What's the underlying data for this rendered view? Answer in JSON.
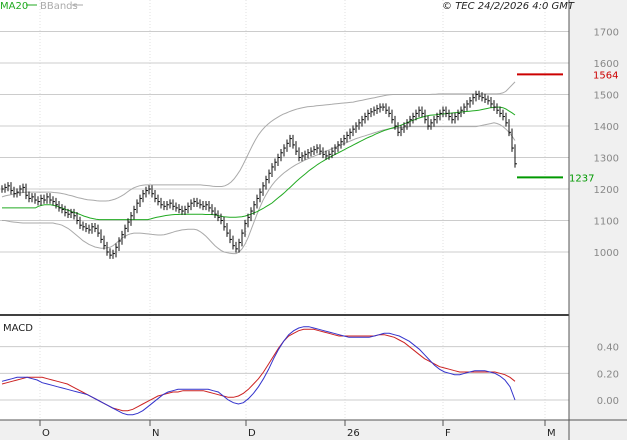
{
  "header": {
    "legend_ma": "MA20",
    "legend_bb": "BBands",
    "copyright": "© TEC 24/2/2026 4:0 GMT"
  },
  "colors": {
    "ma": "#22aa22",
    "bands": "#aaaaaa",
    "price": "#111111",
    "macd": "#3333cc",
    "signal": "#cc2222",
    "resistance": "#cc0000",
    "support": "#009900",
    "grid": "#cccccc",
    "panel_bg": "#f0f0f0"
  },
  "chart_data": [
    {
      "type": "line",
      "name": "price-panel",
      "x_labels": [
        "O",
        "N",
        "D",
        "26",
        "F",
        "M"
      ],
      "ylim": [
        800,
        1800
      ],
      "yticks": [
        1000,
        1100,
        1200,
        1300,
        1400,
        1500,
        1600,
        1700
      ],
      "grid": true,
      "levels": {
        "resistance": {
          "value": 1564,
          "label": "1564"
        },
        "support": {
          "value": 1237,
          "label": "1237"
        }
      },
      "series": [
        {
          "name": "MA20",
          "values": [
            1140,
            1140,
            1140,
            1140,
            1140,
            1140,
            1140,
            1140,
            1140,
            1140,
            1140,
            1140,
            1145,
            1148,
            1150,
            1150,
            1150,
            1148,
            1146,
            1142,
            1139,
            1135,
            1132,
            1128,
            1125,
            1122,
            1118,
            1114,
            1111,
            1108,
            1106,
            1104,
            1103,
            1103,
            1103,
            1103,
            1103,
            1103,
            1103,
            1103,
            1103,
            1103,
            1103,
            1103,
            1103,
            1103,
            1103,
            1103,
            1103,
            1105,
            1108,
            1110,
            1112,
            1114,
            1116,
            1117,
            1118,
            1119,
            1119,
            1120,
            1120,
            1120,
            1120,
            1120,
            1120,
            1120,
            1120,
            1119,
            1119,
            1119,
            1118,
            1116,
            1114,
            1112,
            1111,
            1110,
            1110,
            1110,
            1111,
            1112,
            1114,
            1117,
            1120,
            1124,
            1128,
            1133,
            1138,
            1144,
            1150,
            1156,
            1164,
            1172,
            1180,
            1188,
            1197,
            1206,
            1215,
            1224,
            1233,
            1241,
            1249,
            1257,
            1264,
            1271,
            1278,
            1284,
            1290,
            1296,
            1301,
            1306,
            1311,
            1316,
            1321,
            1326,
            1331,
            1336,
            1341,
            1346,
            1351,
            1356,
            1361,
            1365,
            1369,
            1374,
            1378,
            1382,
            1386,
            1389,
            1392,
            1395,
            1398,
            1401,
            1405,
            1409,
            1413,
            1417,
            1420,
            1424,
            1427,
            1430,
            1432,
            1434,
            1435,
            1436,
            1437,
            1438,
            1439,
            1440,
            1441,
            1442,
            1443,
            1444,
            1445,
            1446,
            1447,
            1448,
            1449,
            1450,
            1452,
            1454,
            1456,
            1458,
            1459,
            1460,
            1460,
            1458,
            1454,
            1448,
            1442,
            1435
          ]
        },
        {
          "name": "BBands upper",
          "values": [
            1175,
            1178,
            1180,
            1182,
            1185,
            1187,
            1188,
            1189,
            1190,
            1190,
            1190,
            1190,
            1190,
            1190,
            1190,
            1190,
            1190,
            1189,
            1188,
            1187,
            1185,
            1183,
            1180,
            1178,
            1175,
            1172,
            1170,
            1168,
            1166,
            1165,
            1164,
            1163,
            1162,
            1162,
            1162,
            1163,
            1165,
            1168,
            1172,
            1177,
            1183,
            1190,
            1197,
            1203,
            1207,
            1210,
            1212,
            1213,
            1213,
            1213,
            1213,
            1213,
            1213,
            1213,
            1213,
            1213,
            1213,
            1213,
            1213,
            1213,
            1213,
            1213,
            1213,
            1213,
            1213,
            1213,
            1212,
            1211,
            1210,
            1209,
            1208,
            1208,
            1208,
            1210,
            1215,
            1222,
            1232,
            1245,
            1260,
            1278,
            1298,
            1318,
            1338,
            1356,
            1372,
            1385,
            1396,
            1405,
            1413,
            1420,
            1426,
            1432,
            1437,
            1441,
            1445,
            1449,
            1452,
            1455,
            1457,
            1459,
            1461,
            1462,
            1463,
            1464,
            1465,
            1466,
            1467,
            1468,
            1469,
            1470,
            1471,
            1472,
            1473,
            1474,
            1475,
            1476,
            1478,
            1480,
            1482,
            1484,
            1486,
            1488,
            1490,
            1492,
            1494,
            1496,
            1498,
            1499,
            1500,
            1500,
            1500,
            1500,
            1500,
            1500,
            1500,
            1500,
            1500,
            1500,
            1500,
            1500,
            1500,
            1501,
            1501,
            1502,
            1502,
            1502,
            1502,
            1502,
            1502,
            1502,
            1502,
            1502,
            1502,
            1502,
            1502,
            1502,
            1502,
            1502,
            1502,
            1502,
            1502,
            1502,
            1502,
            1503,
            1505,
            1510,
            1520,
            1530,
            1540
          ]
        },
        {
          "name": "BBands lower",
          "values": [
            1100,
            1100,
            1098,
            1096,
            1095,
            1094,
            1093,
            1092,
            1092,
            1092,
            1092,
            1092,
            1092,
            1092,
            1092,
            1092,
            1092,
            1092,
            1090,
            1088,
            1085,
            1080,
            1075,
            1068,
            1060,
            1052,
            1044,
            1036,
            1030,
            1024,
            1020,
            1016,
            1014,
            1012,
            1012,
            1013,
            1015,
            1020,
            1028,
            1036,
            1044,
            1050,
            1055,
            1058,
            1060,
            1060,
            1060,
            1059,
            1058,
            1057,
            1056,
            1055,
            1054,
            1054,
            1055,
            1057,
            1060,
            1063,
            1066,
            1068,
            1070,
            1071,
            1072,
            1072,
            1072,
            1070,
            1065,
            1058,
            1050,
            1040,
            1030,
            1020,
            1012,
            1005,
            1000,
            998,
            996,
            995,
            995,
            1000,
            1010,
            1025,
            1045,
            1070,
            1095,
            1120,
            1143,
            1164,
            1182,
            1198,
            1212,
            1224,
            1234,
            1243,
            1251,
            1258,
            1265,
            1271,
            1277,
            1282,
            1287,
            1292,
            1296,
            1300,
            1304,
            1308,
            1312,
            1316,
            1320,
            1324,
            1328,
            1332,
            1336,
            1340,
            1344,
            1348,
            1352,
            1356,
            1360,
            1363,
            1366,
            1369,
            1372,
            1375,
            1378,
            1381,
            1384,
            1387,
            1389,
            1391,
            1392,
            1393,
            1394,
            1395,
            1396,
            1397,
            1398,
            1398,
            1398,
            1398,
            1398,
            1398,
            1398,
            1398,
            1398,
            1398,
            1398,
            1398,
            1398,
            1398,
            1398,
            1398,
            1398,
            1398,
            1398,
            1398,
            1398,
            1398,
            1398,
            1400,
            1402,
            1404,
            1406,
            1408,
            1410,
            1408,
            1404,
            1398,
            1390,
            1380,
            1368,
            1354
          ]
        },
        {
          "name": "price-close",
          "values": [
            1200,
            1205,
            1210,
            1195,
            1185,
            1190,
            1200,
            1205,
            1180,
            1170,
            1175,
            1165,
            1160,
            1170,
            1165,
            1175,
            1165,
            1160,
            1150,
            1140,
            1135,
            1125,
            1120,
            1125,
            1115,
            1100,
            1085,
            1080,
            1075,
            1070,
            1080,
            1075,
            1060,
            1040,
            1020,
            1000,
            990,
            995,
            1015,
            1035,
            1055,
            1075,
            1095,
            1115,
            1135,
            1155,
            1170,
            1185,
            1195,
            1200,
            1185,
            1170,
            1160,
            1150,
            1145,
            1150,
            1155,
            1145,
            1140,
            1135,
            1130,
            1135,
            1145,
            1155,
            1160,
            1155,
            1150,
            1145,
            1150,
            1140,
            1130,
            1120,
            1110,
            1100,
            1080,
            1060,
            1040,
            1020,
            1010,
            1030,
            1060,
            1090,
            1110,
            1130,
            1150,
            1170,
            1190,
            1210,
            1230,
            1250,
            1270,
            1285,
            1300,
            1315,
            1330,
            1345,
            1360,
            1340,
            1320,
            1300,
            1305,
            1310,
            1315,
            1320,
            1325,
            1330,
            1320,
            1310,
            1305,
            1310,
            1320,
            1330,
            1340,
            1350,
            1360,
            1370,
            1380,
            1390,
            1400,
            1410,
            1420,
            1430,
            1440,
            1445,
            1450,
            1455,
            1460,
            1460,
            1450,
            1440,
            1420,
            1400,
            1380,
            1390,
            1400,
            1410,
            1420,
            1430,
            1440,
            1450,
            1440,
            1420,
            1400,
            1410,
            1420,
            1430,
            1440,
            1450,
            1440,
            1430,
            1420,
            1430,
            1440,
            1450,
            1460,
            1470,
            1480,
            1490,
            1500,
            1495,
            1490,
            1485,
            1480,
            1470,
            1460,
            1450,
            1440,
            1430,
            1410,
            1380,
            1330,
            1280
          ]
        }
      ]
    },
    {
      "type": "line",
      "name": "macd-panel",
      "title": "MACD",
      "ylim": [
        -0.15,
        0.6
      ],
      "yticks": [
        0.0,
        0.2,
        0.4
      ],
      "ytick_labels": [
        "0.00",
        "0.20",
        "0.40"
      ],
      "grid": true,
      "series": [
        {
          "name": "MACD",
          "values": [
            0.14,
            0.15,
            0.16,
            0.17,
            0.17,
            0.17,
            0.16,
            0.15,
            0.13,
            0.12,
            0.11,
            0.1,
            0.09,
            0.08,
            0.07,
            0.06,
            0.05,
            0.04,
            0.02,
            0.0,
            -0.02,
            -0.04,
            -0.06,
            -0.08,
            -0.1,
            -0.11,
            -0.11,
            -0.1,
            -0.08,
            -0.05,
            -0.02,
            0.01,
            0.04,
            0.06,
            0.07,
            0.08,
            0.08,
            0.08,
            0.08,
            0.08,
            0.08,
            0.08,
            0.07,
            0.06,
            0.03,
            0.0,
            -0.02,
            -0.03,
            -0.02,
            0.01,
            0.05,
            0.1,
            0.16,
            0.23,
            0.31,
            0.38,
            0.44,
            0.49,
            0.52,
            0.54,
            0.55,
            0.55,
            0.54,
            0.53,
            0.52,
            0.51,
            0.5,
            0.49,
            0.48,
            0.47,
            0.47,
            0.47,
            0.47,
            0.47,
            0.48,
            0.49,
            0.5,
            0.5,
            0.49,
            0.48,
            0.46,
            0.44,
            0.41,
            0.38,
            0.34,
            0.3,
            0.26,
            0.23,
            0.21,
            0.2,
            0.19,
            0.19,
            0.2,
            0.21,
            0.22,
            0.22,
            0.22,
            0.21,
            0.2,
            0.18,
            0.15,
            0.1,
            0.0
          ]
        },
        {
          "name": "Signal",
          "values": [
            0.12,
            0.13,
            0.14,
            0.15,
            0.16,
            0.17,
            0.17,
            0.17,
            0.17,
            0.16,
            0.15,
            0.14,
            0.13,
            0.12,
            0.1,
            0.08,
            0.06,
            0.04,
            0.02,
            0.0,
            -0.02,
            -0.04,
            -0.06,
            -0.07,
            -0.08,
            -0.08,
            -0.07,
            -0.05,
            -0.03,
            -0.01,
            0.01,
            0.03,
            0.04,
            0.05,
            0.06,
            0.06,
            0.07,
            0.07,
            0.07,
            0.07,
            0.07,
            0.06,
            0.05,
            0.04,
            0.03,
            0.02,
            0.02,
            0.03,
            0.05,
            0.08,
            0.12,
            0.16,
            0.21,
            0.27,
            0.33,
            0.39,
            0.44,
            0.48,
            0.5,
            0.52,
            0.53,
            0.53,
            0.53,
            0.52,
            0.51,
            0.5,
            0.49,
            0.48,
            0.48,
            0.48,
            0.48,
            0.48,
            0.48,
            0.48,
            0.48,
            0.49,
            0.49,
            0.48,
            0.47,
            0.45,
            0.43,
            0.4,
            0.37,
            0.34,
            0.31,
            0.29,
            0.27,
            0.25,
            0.24,
            0.23,
            0.22,
            0.21,
            0.21,
            0.21,
            0.21,
            0.21,
            0.21,
            0.21,
            0.21,
            0.2,
            0.19,
            0.17,
            0.14
          ]
        }
      ]
    }
  ]
}
